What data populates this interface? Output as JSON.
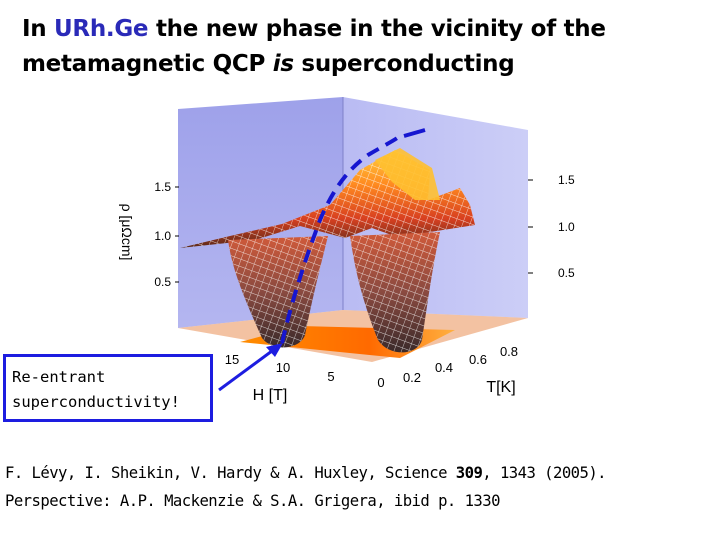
{
  "title": {
    "part1": "In ",
    "highlight": "URh.Ge",
    "part2": " the new phase in the vicinity of the metamagnetic QCP ",
    "italic": "is",
    "part3": " superconducting"
  },
  "figure": {
    "z_axis_label": "ρ [μΩcm]",
    "z_ticks_left": [
      "1.5",
      "1.0",
      "0.5"
    ],
    "z_ticks_right": [
      "1.5",
      "1.0",
      "0.5"
    ],
    "h_axis_label": "H [T]",
    "h_ticks": [
      "15",
      "10",
      "5",
      "0"
    ],
    "t_axis_label": "T[K]",
    "t_ticks": [
      "0.2",
      "0.4",
      "0.6",
      "0.8"
    ],
    "colors": {
      "back_wall": "#a9abee",
      "side_wall": "#c3c5f5",
      "floor": "#ff9a10",
      "dashed_line": "#1616d0"
    }
  },
  "callout": {
    "line1": "Re-entrant",
    "line2": "superconductivity!"
  },
  "citation": {
    "line1_pre": "F. Lévy, I. Sheikin, V. Hardy & A. Huxley, Science ",
    "line1_volume": "309",
    "line1_post": ", 1343 (2005).",
    "line2": "Perspective:  A.P. Mackenzie & S.A. Grigera, ibid p. 1330"
  }
}
